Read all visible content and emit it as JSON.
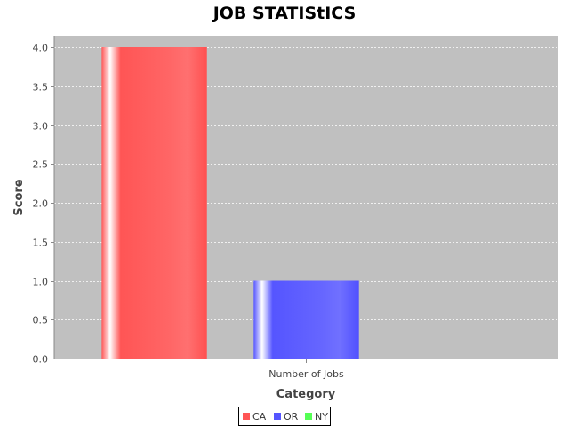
{
  "chart_data": {
    "type": "bar",
    "title": "JOB STATIStICS",
    "xlabel": "Category",
    "ylabel": "Score",
    "categories": [
      "Number of Jobs"
    ],
    "series": [
      {
        "name": "CA",
        "values": [
          4.0
        ],
        "color": "#ff5555"
      },
      {
        "name": "OR",
        "values": [
          1.0
        ],
        "color": "#5555ff"
      },
      {
        "name": "NY",
        "values": [
          0.0
        ],
        "color": "#55ff55"
      }
    ],
    "ylim": [
      0,
      4.0
    ],
    "yticks": [
      "0.0",
      "0.5",
      "1.0",
      "1.5",
      "2.0",
      "2.5",
      "3.0",
      "3.5",
      "4.0"
    ],
    "grid": true,
    "legend_position": "bottom",
    "plot_background": "#c0c0c0"
  }
}
